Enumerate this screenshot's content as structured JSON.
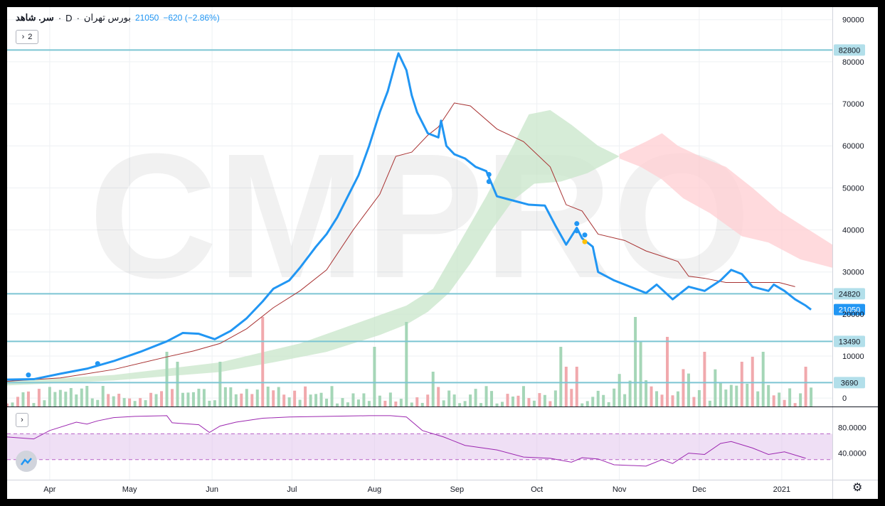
{
  "header": {
    "symbol": "سر. شاهد",
    "dot1": "·",
    "interval": "D",
    "dot2": "·",
    "exchange": "بورس تهران",
    "price": "21050",
    "change": "−620 (−2.86%)"
  },
  "controls": {
    "indicator_toggle_label": "2",
    "indicator_toggle_icon": "chevron-right-icon",
    "rsi_toggle_icon": "chevron-right-icon",
    "logo_icon": "cloud-logo-icon",
    "settings_icon": "gear-icon"
  },
  "watermark": "CMPRO",
  "colors": {
    "price_line": "#2196f3",
    "base_line": "#a83232",
    "cloud_bull": "#c8e6c9",
    "cloud_bear": "#ffcdd2",
    "hline": "#7cc5d3",
    "vol_up": "#a5d6b7",
    "vol_down": "#f1a9ad",
    "rsi_line": "#9c27b0",
    "rsi_band": "#e1c4ec"
  },
  "chart_data": {
    "type": "line",
    "title": "",
    "xlabel": "",
    "ylabel": "",
    "ylim": [
      -2000,
      93000
    ],
    "y_ticks": [
      0,
      10000,
      20000,
      30000,
      40000,
      50000,
      60000,
      70000,
      80000,
      90000
    ],
    "y_tick_labels": [
      "0",
      "10000",
      "20000",
      "30000",
      "40000",
      "50000",
      "60000",
      "70000",
      "80000",
      "90000"
    ],
    "x_ticks": [
      {
        "label": "Apr",
        "day": 16
      },
      {
        "label": "May",
        "day": 46
      },
      {
        "label": "Jun",
        "day": 77
      },
      {
        "label": "Jul",
        "day": 107
      },
      {
        "label": "Aug",
        "day": 138
      },
      {
        "label": "Sep",
        "day": 169
      },
      {
        "label": "Oct",
        "day": 199
      },
      {
        "label": "Nov",
        "day": 230
      },
      {
        "label": "Dec",
        "day": 260
      },
      {
        "label": "2021",
        "day": 291
      }
    ],
    "x_range": [
      0,
      310
    ],
    "horizontal_lines": [
      {
        "value": 82800,
        "label": "82800"
      },
      {
        "value": 24820,
        "label": "24820"
      },
      {
        "value": 13490,
        "label": "13490"
      },
      {
        "value": 3690,
        "label": "3690"
      }
    ],
    "last_price": {
      "value": 21050,
      "label": "21050"
    },
    "series": [
      {
        "role": "price",
        "points": [
          [
            0,
            4400
          ],
          [
            10,
            4500
          ],
          [
            20,
            5800
          ],
          [
            30,
            7000
          ],
          [
            40,
            8800
          ],
          [
            50,
            11000
          ],
          [
            60,
            13500
          ],
          [
            66,
            15500
          ],
          [
            72,
            15300
          ],
          [
            78,
            14000
          ],
          [
            84,
            16000
          ],
          [
            90,
            19000
          ],
          [
            96,
            23000
          ],
          [
            100,
            26000
          ],
          [
            106,
            28000
          ],
          [
            110,
            31000
          ],
          [
            116,
            36000
          ],
          [
            120,
            39000
          ],
          [
            124,
            43000
          ],
          [
            128,
            48000
          ],
          [
            132,
            53000
          ],
          [
            136,
            60000
          ],
          [
            140,
            68000
          ],
          [
            143,
            73000
          ],
          [
            146,
            80000
          ],
          [
            147,
            82000
          ],
          [
            150,
            78000
          ],
          [
            152,
            72000
          ],
          [
            154,
            68000
          ],
          [
            158,
            63000
          ],
          [
            162,
            62000
          ],
          [
            163,
            66000
          ],
          [
            165,
            60000
          ],
          [
            168,
            58000
          ],
          [
            172,
            57000
          ],
          [
            176,
            55000
          ],
          [
            180,
            54000
          ],
          [
            184,
            48000
          ],
          [
            190,
            47000
          ],
          [
            196,
            46000
          ],
          [
            202,
            45800
          ],
          [
            206,
            41000
          ],
          [
            210,
            36500
          ],
          [
            214,
            40500
          ],
          [
            216,
            38000
          ],
          [
            220,
            36000
          ],
          [
            222,
            30000
          ],
          [
            228,
            28000
          ],
          [
            234,
            26500
          ],
          [
            240,
            25000
          ],
          [
            244,
            27000
          ],
          [
            250,
            23500
          ],
          [
            256,
            26500
          ],
          [
            262,
            25500
          ],
          [
            268,
            28000
          ],
          [
            272,
            30500
          ],
          [
            276,
            29500
          ],
          [
            280,
            26500
          ],
          [
            286,
            25500
          ],
          [
            288,
            27000
          ],
          [
            292,
            25500
          ],
          [
            296,
            23500
          ],
          [
            300,
            22000
          ],
          [
            302,
            21050
          ]
        ]
      },
      {
        "role": "baseline",
        "points": [
          [
            0,
            4000
          ],
          [
            20,
            4800
          ],
          [
            40,
            6800
          ],
          [
            60,
            9800
          ],
          [
            70,
            11200
          ],
          [
            80,
            13000
          ],
          [
            90,
            16500
          ],
          [
            100,
            21500
          ],
          [
            110,
            25500
          ],
          [
            120,
            30500
          ],
          [
            130,
            40000
          ],
          [
            140,
            48500
          ],
          [
            146,
            57500
          ],
          [
            152,
            58500
          ],
          [
            158,
            62500
          ],
          [
            162,
            64500
          ],
          [
            168,
            70200
          ],
          [
            174,
            69500
          ],
          [
            184,
            64000
          ],
          [
            194,
            61000
          ],
          [
            204,
            55000
          ],
          [
            210,
            46000
          ],
          [
            216,
            44500
          ],
          [
            222,
            39000
          ],
          [
            232,
            37500
          ],
          [
            240,
            35000
          ],
          [
            252,
            32500
          ],
          [
            256,
            29000
          ],
          [
            262,
            28500
          ],
          [
            270,
            27500
          ],
          [
            290,
            27500
          ],
          [
            296,
            26500
          ]
        ]
      },
      {
        "role": "cloud_bull_upper",
        "points": [
          [
            0,
            4000
          ],
          [
            40,
            5500
          ],
          [
            80,
            8500
          ],
          [
            110,
            13000
          ],
          [
            130,
            17500
          ],
          [
            150,
            22000
          ],
          [
            160,
            26000
          ],
          [
            170,
            37000
          ],
          [
            180,
            48000
          ],
          [
            190,
            60000
          ],
          [
            196,
            67500
          ],
          [
            204,
            68500
          ],
          [
            212,
            65000
          ],
          [
            222,
            60000
          ],
          [
            230,
            57500
          ]
        ]
      },
      {
        "role": "cloud_bull_lower",
        "points": [
          [
            0,
            3000
          ],
          [
            40,
            4200
          ],
          [
            80,
            6200
          ],
          [
            100,
            8500
          ],
          [
            120,
            11000
          ],
          [
            140,
            15000
          ],
          [
            150,
            17500
          ],
          [
            158,
            20500
          ],
          [
            166,
            25000
          ],
          [
            174,
            32000
          ],
          [
            182,
            40000
          ],
          [
            190,
            47000
          ],
          [
            198,
            51000
          ],
          [
            208,
            51500
          ],
          [
            218,
            53500
          ],
          [
            230,
            57500
          ]
        ]
      },
      {
        "role": "cloud_bear_upper",
        "points": [
          [
            230,
            58000
          ],
          [
            240,
            61000
          ],
          [
            246,
            63000
          ],
          [
            252,
            60000
          ],
          [
            262,
            57000
          ],
          [
            270,
            55000
          ],
          [
            280,
            50000
          ],
          [
            290,
            44500
          ],
          [
            300,
            40500
          ],
          [
            310,
            36500
          ]
        ]
      },
      {
        "role": "cloud_bear_lower",
        "points": [
          [
            230,
            57000
          ],
          [
            238,
            55000
          ],
          [
            246,
            52000
          ],
          [
            254,
            47500
          ],
          [
            264,
            44000
          ],
          [
            276,
            38500
          ],
          [
            286,
            37000
          ],
          [
            298,
            33000
          ],
          [
            310,
            31000
          ]
        ]
      }
    ],
    "markers": [
      {
        "day": 8,
        "value": 5500,
        "color": "#2196f3"
      },
      {
        "day": 34,
        "value": 8200,
        "color": "#2196f3"
      },
      {
        "day": 181,
        "value": 53200,
        "color": "#2196f3"
      },
      {
        "day": 181,
        "value": 51500,
        "color": "#2196f3"
      },
      {
        "day": 214,
        "value": 41500,
        "color": "#2196f3"
      },
      {
        "day": 214,
        "value": 39800,
        "color": "#2196f3"
      },
      {
        "day": 217,
        "value": 38800,
        "color": "#2196f3"
      },
      {
        "day": 217,
        "value": 37200,
        "color": "#ffc107"
      }
    ],
    "volume_spikes": [
      {
        "day": 60,
        "value": 0.55,
        "up": true
      },
      {
        "day": 64,
        "value": 0.45,
        "up": true
      },
      {
        "day": 71,
        "value": 0.45,
        "up": false
      },
      {
        "day": 80,
        "value": 0.45,
        "up": true
      },
      {
        "day": 96,
        "value": 0.9,
        "up": false
      },
      {
        "day": 113,
        "value": 0.33,
        "up": false
      },
      {
        "day": 137,
        "value": 0.6,
        "up": false
      },
      {
        "day": 138,
        "value": 0.6,
        "up": true
      },
      {
        "day": 150,
        "value": 0.85,
        "up": true
      },
      {
        "day": 160,
        "value": 0.35,
        "up": true
      },
      {
        "day": 208,
        "value": 0.6,
        "up": true
      },
      {
        "day": 210,
        "value": 0.4,
        "up": false
      },
      {
        "day": 214,
        "value": 0.4,
        "up": false
      },
      {
        "day": 236,
        "value": 0.9,
        "up": true
      },
      {
        "day": 238,
        "value": 0.65,
        "up": true
      },
      {
        "day": 248,
        "value": 0.7,
        "up": false
      },
      {
        "day": 262,
        "value": 0.55,
        "up": false
      },
      {
        "day": 276,
        "value": 0.45,
        "up": false
      },
      {
        "day": 280,
        "value": 0.5,
        "up": false
      },
      {
        "day": 284,
        "value": 0.55,
        "up": true
      },
      {
        "day": 300,
        "value": 0.4,
        "up": false
      }
    ],
    "rsi": {
      "type": "line",
      "ylim": [
        0,
        110
      ],
      "y_ticks": [
        40,
        80
      ],
      "y_tick_labels": [
        "40.0000",
        "80.0000"
      ],
      "band": [
        30,
        70
      ],
      "points": [
        [
          0,
          65
        ],
        [
          10,
          62
        ],
        [
          16,
          75
        ],
        [
          26,
          88
        ],
        [
          30,
          85
        ],
        [
          34,
          90
        ],
        [
          40,
          95
        ],
        [
          48,
          97
        ],
        [
          60,
          98
        ],
        [
          62,
          87
        ],
        [
          72,
          84
        ],
        [
          76,
          72
        ],
        [
          80,
          82
        ],
        [
          86,
          88
        ],
        [
          96,
          94
        ],
        [
          106,
          96
        ],
        [
          120,
          97
        ],
        [
          136,
          98
        ],
        [
          144,
          98
        ],
        [
          150,
          96
        ],
        [
          156,
          75
        ],
        [
          164,
          65
        ],
        [
          172,
          52
        ],
        [
          184,
          45
        ],
        [
          194,
          34
        ],
        [
          204,
          32
        ],
        [
          212,
          26
        ],
        [
          216,
          33
        ],
        [
          222,
          31
        ],
        [
          228,
          22
        ],
        [
          240,
          20
        ],
        [
          246,
          30
        ],
        [
          250,
          24
        ],
        [
          256,
          40
        ],
        [
          262,
          38
        ],
        [
          268,
          55
        ],
        [
          272,
          58
        ],
        [
          280,
          48
        ],
        [
          286,
          38
        ],
        [
          292,
          42
        ],
        [
          300,
          32
        ]
      ]
    }
  }
}
